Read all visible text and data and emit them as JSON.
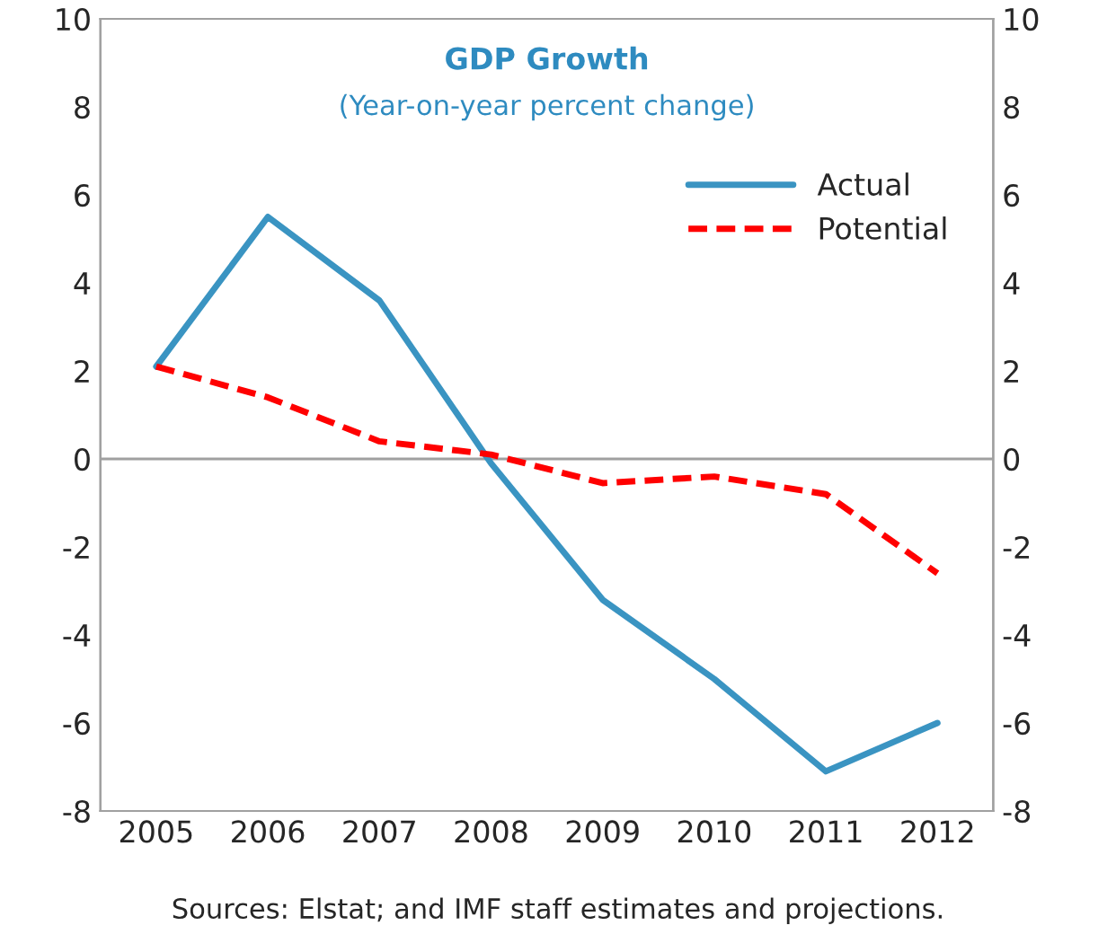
{
  "chart_data": {
    "type": "line",
    "title": "GDP Growth",
    "subtitle": "(Year-on-year percent change)",
    "categories": [
      "2005",
      "2006",
      "2007",
      "2008",
      "2009",
      "2010",
      "2011",
      "2012"
    ],
    "series": [
      {
        "name": "Actual",
        "color": "#3a94c2",
        "line_style": "solid",
        "values": [
          2.1,
          5.5,
          3.6,
          -0.1,
          -3.2,
          -5.0,
          -7.1,
          -6.0
        ]
      },
      {
        "name": "Potential",
        "color": "#ff0000",
        "line_style": "dashed",
        "values": [
          2.1,
          1.4,
          0.4,
          0.1,
          -0.55,
          -0.4,
          -0.8,
          -2.6
        ]
      }
    ],
    "ylim": [
      -8,
      10
    ],
    "yticks": [
      -8,
      -6,
      -4,
      -2,
      0,
      2,
      4,
      6,
      8,
      10
    ],
    "y2lim": [
      -8,
      10
    ],
    "y2ticks": [
      -8,
      -6,
      -4,
      -2,
      0,
      2,
      4,
      6,
      8,
      10
    ],
    "ref_lines": [
      {
        "axis": "y",
        "value": 0,
        "color": "#a0a0a0"
      }
    ],
    "legend": "top right",
    "grid": false,
    "marker": "none",
    "annotations": [
      "Sources: Elstat; and IMF staff estimates and projections."
    ]
  }
}
